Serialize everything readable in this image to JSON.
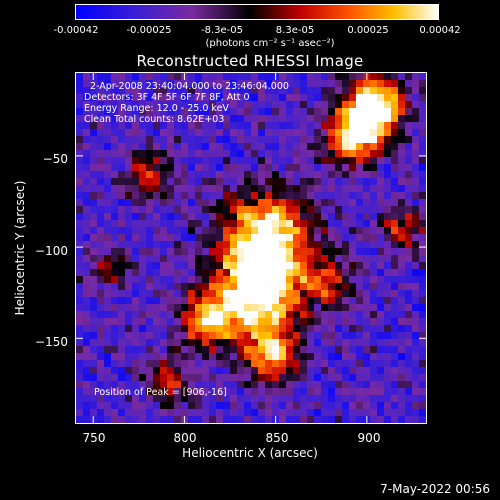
{
  "colorbar": {
    "tick_labels": [
      "-0.00042",
      "-0.00025",
      "-8.3e-05",
      "8.3e-05",
      "0.00025",
      "0.00042"
    ],
    "units": "(photons cm⁻² s⁻¹ asec⁻²)",
    "range": [
      -0.00042,
      0.00042
    ]
  },
  "title": "Reconstructed RHESSI Image",
  "annotations": {
    "time_range": "2-Apr-2008 23:40:04.000 to 23:46:04.000",
    "detectors": "Detectors: 3F 4F 5F 6F 7F 8F, Att 0",
    "energy_range": "Energy Range: 12.0 - 25.0 keV",
    "clean": "Clean     Total counts: 8.62E+03",
    "peak": "Position of Peak = [906,-16]"
  },
  "footer": "7-May-2022 00:56",
  "chart_data": {
    "type": "heatmap",
    "title": "Reconstructed RHESSI Image",
    "xlabel": "Heliocentric X (arcsec)",
    "ylabel": "Heliocentric Y (arcsec)",
    "xlim": [
      740,
      933
    ],
    "ylim": [
      -197,
      -4
    ],
    "x_ticks": [
      750,
      800,
      850,
      900
    ],
    "y_ticks": [
      -50,
      -100,
      -150
    ],
    "x_tick_labels": [
      "750",
      "800",
      "850",
      "900"
    ],
    "y_tick_labels": [
      "−50",
      "−100",
      "−150"
    ],
    "colormap": "RHESSI (blue-purple-black-red-yellow-white)",
    "peak_position": [
      906,
      -16
    ],
    "sources": [
      {
        "x": 905,
        "y": -22,
        "r": 12,
        "intensity": 1.0
      },
      {
        "x": 893,
        "y": -40,
        "r": 12,
        "intensity": 0.75
      },
      {
        "x": 845,
        "y": -95,
        "r": 20,
        "intensity": 0.85
      },
      {
        "x": 840,
        "y": -128,
        "r": 18,
        "intensity": 0.8
      },
      {
        "x": 848,
        "y": -160,
        "r": 12,
        "intensity": 0.6
      },
      {
        "x": 812,
        "y": -140,
        "r": 12,
        "intensity": 0.6
      },
      {
        "x": 780,
        "y": -60,
        "r": 10,
        "intensity": 0.5
      },
      {
        "x": 920,
        "y": -90,
        "r": 10,
        "intensity": 0.45
      },
      {
        "x": 880,
        "y": -120,
        "r": 10,
        "intensity": 0.45
      },
      {
        "x": 790,
        "y": -175,
        "r": 10,
        "intensity": 0.4
      },
      {
        "x": 760,
        "y": -110,
        "r": 9,
        "intensity": 0.35
      }
    ]
  }
}
